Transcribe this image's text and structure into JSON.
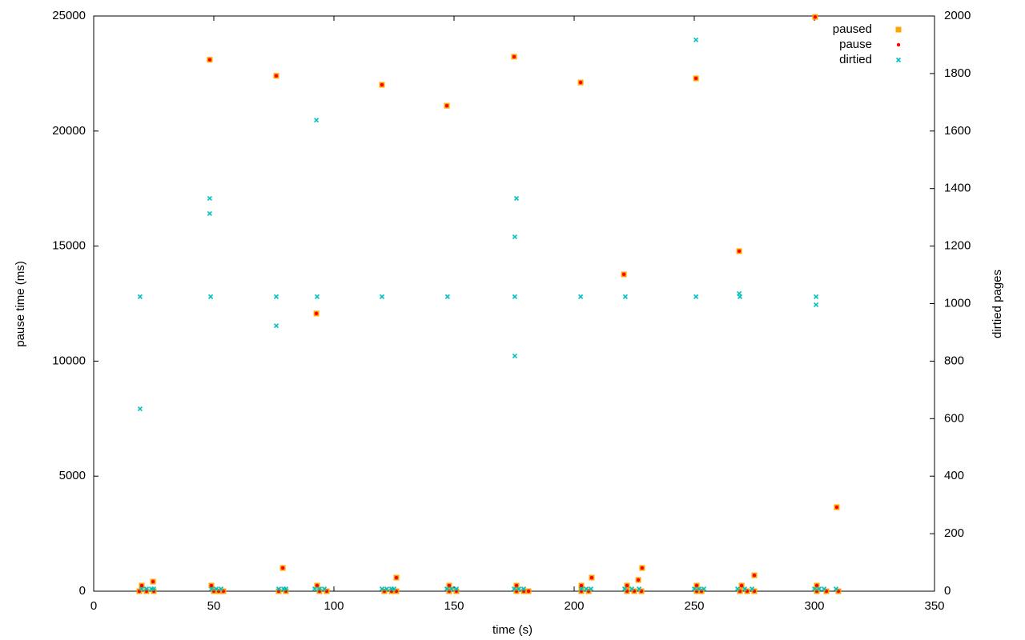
{
  "chart_data": {
    "type": "scatter",
    "xlabel": "time (s)",
    "ylabel": "pause time (ms)",
    "y2label": "dirtied pages",
    "xlim": [
      0,
      350
    ],
    "xticks": [
      0,
      50,
      100,
      150,
      200,
      250,
      300,
      350
    ],
    "ylim": [
      0,
      25000
    ],
    "yticks": [
      0,
      5000,
      10000,
      15000,
      20000,
      25000
    ],
    "y2lim": [
      0,
      2000
    ],
    "y2ticks": [
      0,
      200,
      400,
      600,
      800,
      1000,
      1200,
      1400,
      1600,
      1800,
      2000
    ],
    "legend": "top right",
    "series": [
      {
        "name": "paused",
        "color": "#ffa500",
        "marker": "square",
        "x": [
          48.3,
          76,
          92.7,
          120,
          147,
          175,
          202.7,
          220.7,
          250.7,
          268.7,
          300.3,
          309.3,
          20,
          24.7,
          49,
          78.7,
          93,
          126,
          148,
          176,
          203,
          207.3,
          222,
          226.7,
          228.3,
          251,
          269.7,
          275,
          301,
          19,
          22,
          25,
          50,
          52,
          54,
          77,
          80,
          94,
          97,
          121,
          124,
          126,
          148,
          151,
          176,
          179,
          181,
          203,
          206,
          222,
          225,
          228,
          251,
          253,
          269,
          272,
          275,
          301,
          305,
          310
        ],
        "values": [
          23100,
          22400,
          12070,
          22010,
          21100,
          23230,
          22110,
          13770,
          22290,
          14780,
          24960,
          3650,
          243,
          417,
          243,
          1010,
          243,
          590,
          243,
          243,
          243,
          590,
          243,
          490,
          1010,
          243,
          243,
          690,
          243,
          0,
          0,
          0,
          0,
          0,
          0,
          0,
          0,
          0,
          0,
          0,
          0,
          0,
          0,
          0,
          0,
          0,
          0,
          0,
          0,
          0,
          0,
          0,
          0,
          0,
          0,
          0,
          0,
          0,
          0,
          0
        ]
      },
      {
        "name": "pause",
        "color": "#ff0000",
        "marker": "circle",
        "x": [
          48.3,
          76,
          92.7,
          120,
          147,
          175,
          202.7,
          220.7,
          250.7,
          268.7,
          300.3,
          309.3,
          20,
          24.7,
          49,
          78.7,
          93,
          126,
          148,
          176,
          203,
          207.3,
          222,
          226.7,
          228.3,
          251,
          269.7,
          275,
          301,
          19,
          22,
          25,
          50,
          52,
          54,
          77,
          80,
          94,
          97,
          121,
          124,
          126,
          148,
          151,
          176,
          179,
          181,
          203,
          206,
          222,
          225,
          228,
          251,
          253,
          269,
          272,
          275,
          301,
          305,
          310
        ],
        "values": [
          23100,
          22400,
          12070,
          22010,
          21100,
          23230,
          22110,
          13770,
          22290,
          14780,
          24960,
          3650,
          243,
          417,
          243,
          1010,
          243,
          590,
          243,
          243,
          243,
          590,
          243,
          490,
          1010,
          243,
          243,
          690,
          243,
          0,
          0,
          0,
          0,
          0,
          0,
          0,
          0,
          0,
          0,
          0,
          0,
          0,
          0,
          0,
          0,
          0,
          0,
          0,
          0,
          0,
          0,
          0,
          0,
          0,
          0,
          0,
          0,
          0,
          0,
          0
        ]
      },
      {
        "name": "dirtied",
        "color": "#00c0c0",
        "marker": "x",
        "axis": "y2",
        "x": [
          19.3,
          19.3,
          48.3,
          48.3,
          48.7,
          76,
          76,
          92.7,
          93,
          120,
          147.3,
          176,
          175.3,
          175.3,
          175.3,
          202.7,
          221.3,
          250.7,
          250.7,
          268.7,
          269,
          300.7,
          300.7,
          20,
          22,
          24,
          25,
          49,
          51,
          53,
          77,
          79,
          80,
          92,
          94,
          96,
          120,
          122,
          124,
          125,
          147,
          149,
          151,
          175,
          177,
          179,
          203,
          205,
          207,
          221,
          224,
          227,
          250,
          252,
          254,
          268,
          271,
          274,
          300,
          302,
          304,
          309
        ],
        "values": [
          634,
          1024,
          1366,
          1313,
          1024,
          1024,
          923,
          1638,
          1024,
          1024,
          1024,
          1366,
          1232,
          1024,
          818,
          1024,
          1024,
          1917,
          1024,
          1035,
          1024,
          1024,
          996,
          8,
          8,
          8,
          8,
          8,
          8,
          8,
          8,
          8,
          8,
          8,
          8,
          8,
          8,
          8,
          8,
          8,
          8,
          8,
          8,
          8,
          8,
          8,
          8,
          8,
          8,
          8,
          8,
          8,
          8,
          8,
          8,
          8,
          8,
          8,
          8,
          8,
          8,
          8
        ]
      }
    ]
  }
}
